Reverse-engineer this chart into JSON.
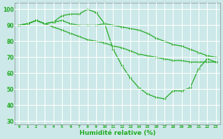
{
  "title": "",
  "xlabel": "Humidité relative (%)",
  "ylabel": "",
  "background_color": "#cce8e8",
  "grid_color": "#ffffff",
  "line_color": "#22aa22",
  "marker": "D",
  "markersize": 2.0,
  "linewidth": 0.9,
  "ylim": [
    28,
    104
  ],
  "xlim": [
    -0.5,
    23.5
  ],
  "yticks": [
    30,
    40,
    50,
    60,
    70,
    80,
    90,
    100
  ],
  "xtick_labels": [
    "0",
    "1",
    "2",
    "3",
    "4",
    "5",
    "6",
    "7",
    "8",
    "9",
    "10",
    "11",
    "12",
    "13",
    "14",
    "15",
    "16",
    "17",
    "18",
    "19",
    "20",
    "21",
    "22",
    "23"
  ],
  "series": [
    [
      90,
      91,
      93,
      91,
      92,
      96,
      97,
      97,
      100,
      98,
      91,
      75,
      65,
      57,
      51,
      47,
      45,
      44,
      49,
      49,
      51,
      63,
      69,
      67
    ],
    [
      90,
      91,
      93,
      91,
      92,
      93,
      91,
      90,
      90,
      90,
      91,
      90,
      89,
      88,
      87,
      85,
      82,
      80,
      78,
      77,
      75,
      73,
      71,
      70
    ],
    [
      90,
      91,
      93,
      91,
      89,
      87,
      85,
      83,
      81,
      80,
      79,
      77,
      76,
      74,
      72,
      71,
      70,
      69,
      68,
      68,
      67,
      67,
      67,
      67
    ]
  ]
}
